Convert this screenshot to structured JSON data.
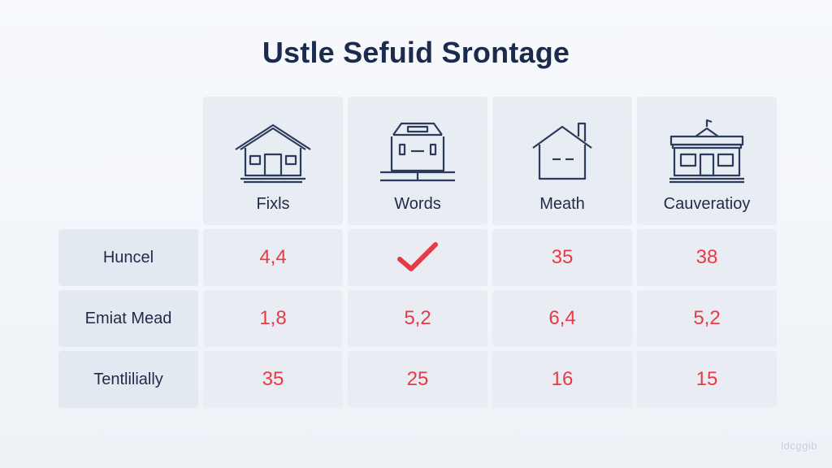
{
  "title": "Ustle Sefuid Srontage",
  "columns": [
    {
      "label": "Fixls",
      "icon": "house-icon"
    },
    {
      "label": "Words",
      "icon": "building-icon"
    },
    {
      "label": "Meath",
      "icon": "cottage-icon"
    },
    {
      "label": "Cauveratioy",
      "icon": "storefront-icon"
    }
  ],
  "rows": [
    {
      "label": "Huncel",
      "values": [
        "4,4",
        "✓",
        "35",
        "38"
      ]
    },
    {
      "label": "Emiat Mead",
      "values": [
        "1,8",
        "5,2",
        "6,4",
        "5,2"
      ]
    },
    {
      "label": "Tentlilially",
      "values": [
        "35",
        "25",
        "16",
        "15"
      ]
    }
  ],
  "colors": {
    "title": "#1c2a4d",
    "value": "#e63b45",
    "icon_stroke": "#2c3a5c"
  },
  "watermark": "ldcggib"
}
